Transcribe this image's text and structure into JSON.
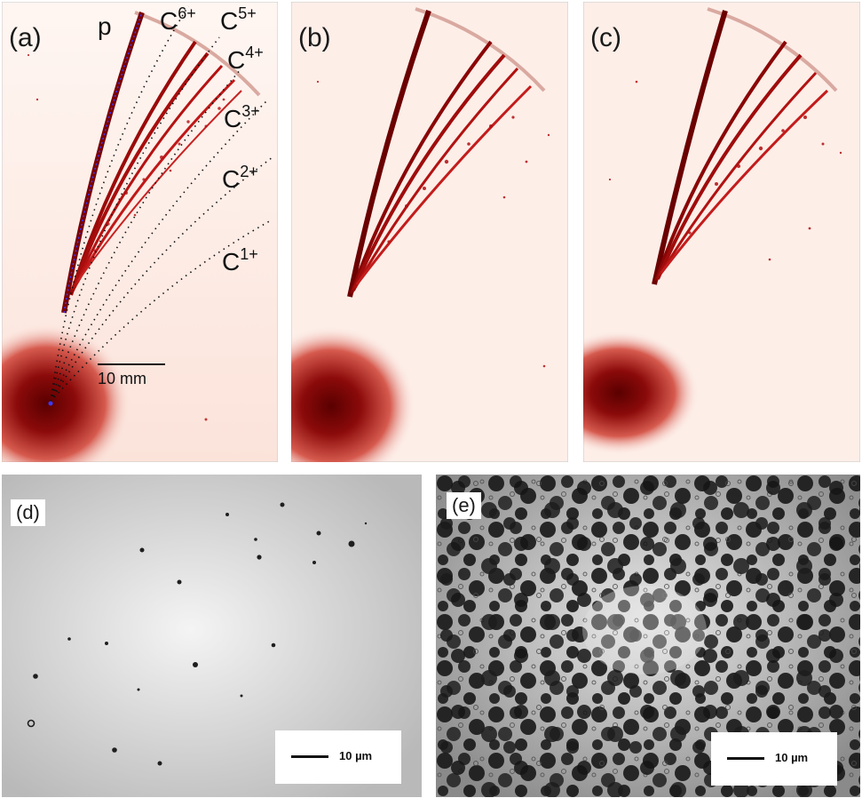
{
  "panels": {
    "a": {
      "label": "(a)",
      "ions": [
        {
          "base": "p",
          "charge": ""
        },
        {
          "base": "C",
          "charge": "6+"
        },
        {
          "base": "C",
          "charge": "5+"
        },
        {
          "base": "C",
          "charge": "4+"
        },
        {
          "base": "C",
          "charge": "3+"
        },
        {
          "base": "C",
          "charge": "2+"
        },
        {
          "base": "C",
          "charge": "1+"
        }
      ],
      "scale_bar": "10 mm"
    },
    "b": {
      "label": "(b)"
    },
    "c": {
      "label": "(c)"
    },
    "d": {
      "label": "(d)",
      "scale_bar": "10 µm"
    },
    "e": {
      "label": "(e)",
      "scale_bar": "10 µm"
    }
  },
  "colors": {
    "trace_dark": "#6b0000",
    "trace_mid": "#c0161b",
    "background_pink": "#fdeae4",
    "proton_fit": "#3a3aff"
  }
}
